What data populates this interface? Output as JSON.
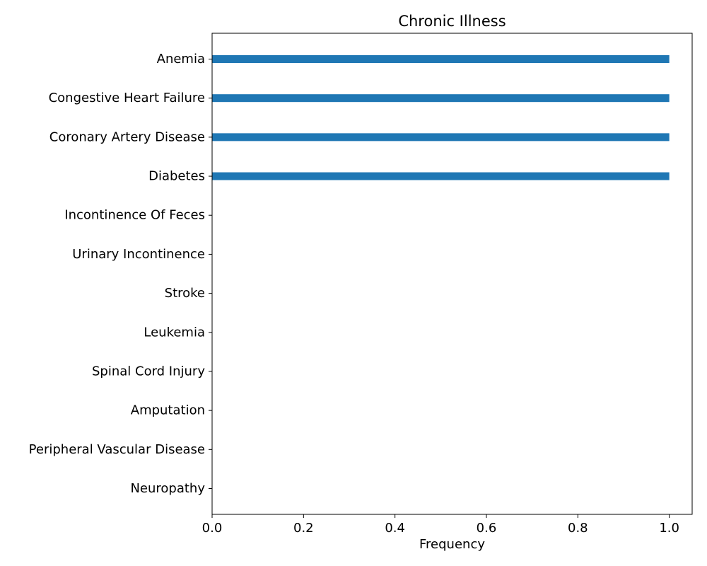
{
  "chart_data": {
    "type": "bar",
    "orientation": "horizontal",
    "title": "Chronic Illness",
    "xlabel": "Frequency",
    "ylabel": "",
    "categories": [
      "Anemia",
      "Congestive Heart Failure",
      "Coronary Artery Disease",
      "Diabetes",
      "Incontinence Of Feces",
      "Urinary Incontinence",
      "Stroke",
      "Leukemia",
      "Spinal Cord Injury",
      "Amputation",
      "Peripheral Vascular Disease",
      "Neuropathy"
    ],
    "values": [
      1,
      1,
      1,
      1,
      0,
      0,
      0,
      0,
      0,
      0,
      0,
      0
    ],
    "xlim": [
      0.0,
      1.05
    ],
    "xticks": [
      "0.0",
      "0.2",
      "0.4",
      "0.6",
      "0.8",
      "1.0"
    ],
    "grid": false,
    "bar_color": "#1f77b4"
  }
}
